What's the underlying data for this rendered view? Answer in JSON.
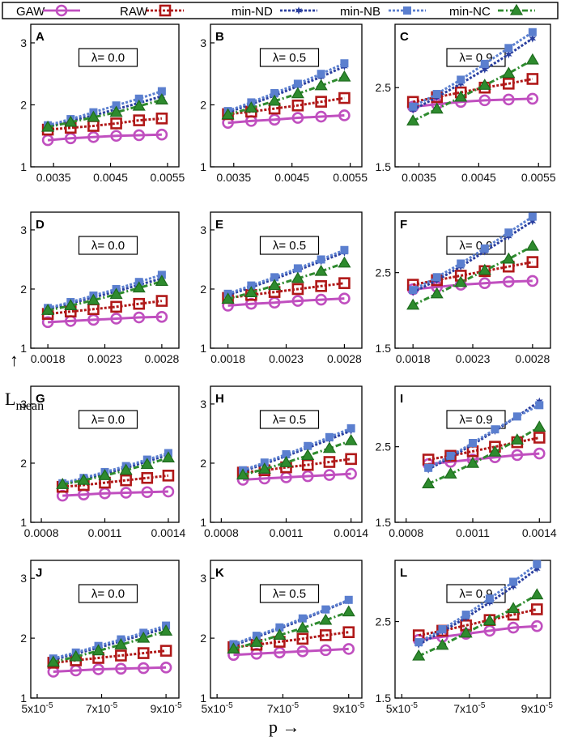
{
  "legend": [
    {
      "label": "GAW",
      "color": "#c04fbf",
      "marker": "circle",
      "dash": "solid"
    },
    {
      "label": "RAW",
      "color": "#b01818",
      "marker": "square",
      "dash": "dotted"
    },
    {
      "label": "min-ND",
      "color": "#2a3f9f",
      "marker": "star",
      "dash": "dotted"
    },
    {
      "label": "min-NB",
      "color": "#5b7fcf",
      "marker": "filled-square",
      "dash": "dotted"
    },
    {
      "label": "min-NC",
      "color": "#2e8b2e",
      "marker": "triangle",
      "dash": "dashdot"
    }
  ],
  "axes_labels": {
    "y": "L",
    "y_sub": "mean",
    "y_arrow": "→",
    "x": "p →"
  },
  "panel_titles": [
    "A",
    "B",
    "C",
    "D",
    "E",
    "F",
    "G",
    "H",
    "I",
    "J",
    "K",
    "L"
  ],
  "chart_data": [
    {
      "type": "line",
      "panel": "A",
      "title": "λ= 0.0",
      "x": [
        0.0034,
        0.0038,
        0.0042,
        0.0046,
        0.005,
        0.0054
      ],
      "xticks": [
        "0.0035",
        "0.0045",
        "0.0055"
      ],
      "xtickvals": [
        0.0035,
        0.0045,
        0.0055
      ],
      "xlim": [
        0.0031,
        0.0057
      ],
      "ylim": [
        1,
        3.3
      ],
      "yticks": [
        1,
        2,
        3
      ],
      "series": [
        {
          "name": "GAW",
          "values": [
            1.43,
            1.46,
            1.48,
            1.5,
            1.51,
            1.52
          ]
        },
        {
          "name": "RAW",
          "values": [
            1.6,
            1.63,
            1.66,
            1.7,
            1.75,
            1.78
          ]
        },
        {
          "name": "min-ND",
          "values": [
            1.65,
            1.74,
            1.83,
            1.93,
            2.03,
            2.14
          ]
        },
        {
          "name": "min-NB",
          "values": [
            1.67,
            1.77,
            1.88,
            1.99,
            2.1,
            2.22
          ]
        },
        {
          "name": "min-NC",
          "values": [
            1.64,
            1.72,
            1.8,
            1.88,
            1.98,
            2.08
          ]
        }
      ]
    },
    {
      "type": "line",
      "panel": "B",
      "title": "λ= 0.5",
      "x": [
        0.0034,
        0.0038,
        0.0042,
        0.0046,
        0.005,
        0.0054
      ],
      "xticks": [
        "0.0035",
        "0.0045",
        "0.0055"
      ],
      "xtickvals": [
        0.0035,
        0.0045,
        0.0055
      ],
      "xlim": [
        0.0031,
        0.0057
      ],
      "ylim": [
        1,
        3.3
      ],
      "yticks": [
        1,
        2,
        3
      ],
      "series": [
        {
          "name": "GAW",
          "values": [
            1.71,
            1.74,
            1.76,
            1.79,
            1.81,
            1.83
          ]
        },
        {
          "name": "RAW",
          "values": [
            1.85,
            1.89,
            1.94,
            1.99,
            2.05,
            2.11
          ]
        },
        {
          "name": "min-ND",
          "values": [
            1.88,
            2.01,
            2.15,
            2.3,
            2.45,
            2.62
          ]
        },
        {
          "name": "min-NB",
          "values": [
            1.9,
            2.04,
            2.19,
            2.34,
            2.5,
            2.67
          ]
        },
        {
          "name": "min-NC",
          "values": [
            1.84,
            1.95,
            2.06,
            2.18,
            2.31,
            2.45
          ]
        }
      ]
    },
    {
      "type": "line",
      "panel": "C",
      "title": "λ= 0.9",
      "x": [
        0.0034,
        0.0038,
        0.0042,
        0.0046,
        0.005,
        0.0054
      ],
      "xticks": [
        "0.0035",
        "0.0045",
        "0.0055"
      ],
      "xtickvals": [
        0.0035,
        0.0045,
        0.0055
      ],
      "xlim": [
        0.0031,
        0.0057
      ],
      "ylim": [
        1.5,
        3.3
      ],
      "yticks": [
        1.5,
        2.5
      ],
      "series": [
        {
          "name": "GAW",
          "values": [
            2.26,
            2.29,
            2.32,
            2.34,
            2.35,
            2.36
          ]
        },
        {
          "name": "RAW",
          "values": [
            2.32,
            2.38,
            2.44,
            2.5,
            2.55,
            2.61
          ]
        },
        {
          "name": "min-ND",
          "values": [
            2.22,
            2.38,
            2.55,
            2.73,
            2.92,
            3.12
          ]
        },
        {
          "name": "min-NB",
          "values": [
            2.26,
            2.42,
            2.6,
            2.8,
            3.0,
            3.2
          ]
        },
        {
          "name": "min-NC",
          "values": [
            2.08,
            2.23,
            2.38,
            2.53,
            2.68,
            2.85
          ]
        }
      ]
    },
    {
      "type": "line",
      "panel": "D",
      "title": "λ= 0.0",
      "x": [
        0.0018,
        0.002,
        0.0022,
        0.0024,
        0.0026,
        0.0028
      ],
      "xticks": [
        "0.0018",
        "0.0023",
        "0.0028"
      ],
      "xtickvals": [
        0.0018,
        0.0023,
        0.0028
      ],
      "xlim": [
        0.00165,
        0.00295
      ],
      "ylim": [
        1,
        3.3
      ],
      "yticks": [
        1,
        2,
        3
      ],
      "series": [
        {
          "name": "GAW",
          "values": [
            1.44,
            1.46,
            1.48,
            1.5,
            1.52,
            1.53
          ]
        },
        {
          "name": "RAW",
          "values": [
            1.58,
            1.62,
            1.66,
            1.7,
            1.75,
            1.8
          ]
        },
        {
          "name": "min-ND",
          "values": [
            1.66,
            1.76,
            1.86,
            1.96,
            2.07,
            2.18
          ]
        },
        {
          "name": "min-NB",
          "values": [
            1.68,
            1.78,
            1.89,
            2.0,
            2.12,
            2.24
          ]
        },
        {
          "name": "min-NC",
          "values": [
            1.64,
            1.72,
            1.81,
            1.91,
            2.02,
            2.13
          ]
        }
      ]
    },
    {
      "type": "line",
      "panel": "E",
      "title": "λ= 0.5",
      "x": [
        0.0018,
        0.002,
        0.0022,
        0.0024,
        0.0026,
        0.0028
      ],
      "xticks": [
        "0.0018",
        "0.0023",
        "0.0028"
      ],
      "xtickvals": [
        0.0018,
        0.0023,
        0.0028
      ],
      "xlim": [
        0.00165,
        0.00295
      ],
      "ylim": [
        1,
        3.3
      ],
      "yticks": [
        1,
        2,
        3
      ],
      "series": [
        {
          "name": "GAW",
          "values": [
            1.72,
            1.75,
            1.77,
            1.8,
            1.82,
            1.84
          ]
        },
        {
          "name": "RAW",
          "values": [
            1.85,
            1.9,
            1.95,
            2.0,
            2.05,
            2.1
          ]
        },
        {
          "name": "min-ND",
          "values": [
            1.9,
            2.03,
            2.17,
            2.32,
            2.47,
            2.62
          ]
        },
        {
          "name": "min-NB",
          "values": [
            1.92,
            2.06,
            2.2,
            2.35,
            2.5,
            2.66
          ]
        },
        {
          "name": "min-NC",
          "values": [
            1.83,
            1.94,
            2.06,
            2.18,
            2.3,
            2.44
          ]
        }
      ]
    },
    {
      "type": "line",
      "panel": "F",
      "title": "λ= 0.9",
      "x": [
        0.0018,
        0.002,
        0.0022,
        0.0024,
        0.0026,
        0.0028
      ],
      "xticks": [
        "0.0018",
        "0.0023",
        "0.0028"
      ],
      "xtickvals": [
        0.0018,
        0.0023,
        0.0028
      ],
      "xlim": [
        0.00165,
        0.00295
      ],
      "ylim": [
        1.5,
        3.3
      ],
      "yticks": [
        1.5,
        2.5
      ],
      "series": [
        {
          "name": "GAW",
          "values": [
            2.28,
            2.31,
            2.34,
            2.36,
            2.38,
            2.39
          ]
        },
        {
          "name": "RAW",
          "values": [
            2.34,
            2.4,
            2.46,
            2.52,
            2.58,
            2.64
          ]
        },
        {
          "name": "min-ND",
          "values": [
            2.24,
            2.4,
            2.58,
            2.78,
            2.98,
            3.18
          ]
        },
        {
          "name": "min-NB",
          "values": [
            2.27,
            2.44,
            2.62,
            2.82,
            3.03,
            3.24
          ]
        },
        {
          "name": "min-NC",
          "values": [
            2.07,
            2.22,
            2.37,
            2.53,
            2.68,
            2.85
          ]
        }
      ]
    },
    {
      "type": "line",
      "panel": "G",
      "title": "λ= 0.0",
      "x": [
        0.0009,
        0.001,
        0.0011,
        0.0012,
        0.0013,
        0.0014
      ],
      "xticks": [
        "0.0008",
        "0.0011",
        "0.0014"
      ],
      "xtickvals": [
        0.0008,
        0.0011,
        0.0014
      ],
      "xlim": [
        0.00075,
        0.00145
      ],
      "ylim": [
        1,
        3.3
      ],
      "yticks": [
        1,
        2,
        3
      ],
      "series": [
        {
          "name": "GAW",
          "values": [
            1.45,
            1.47,
            1.49,
            1.5,
            1.51,
            1.52
          ]
        },
        {
          "name": "RAW",
          "values": [
            1.6,
            1.63,
            1.67,
            1.71,
            1.75,
            1.79
          ]
        },
        {
          "name": "min-ND",
          "values": [
            1.64,
            1.73,
            1.82,
            1.92,
            2.03,
            2.14
          ]
        },
        {
          "name": "min-NB",
          "values": [
            1.66,
            1.75,
            1.85,
            1.95,
            2.06,
            2.17
          ]
        },
        {
          "name": "min-NC",
          "values": [
            1.64,
            1.71,
            1.79,
            1.88,
            1.98,
            2.09
          ]
        }
      ]
    },
    {
      "type": "line",
      "panel": "H",
      "title": "λ= 0.5",
      "x": [
        0.0009,
        0.001,
        0.0011,
        0.0012,
        0.0013,
        0.0014
      ],
      "xticks": [
        "0.0008",
        "0.0011",
        "0.0014"
      ],
      "xtickvals": [
        0.0008,
        0.0011,
        0.0014
      ],
      "xlim": [
        0.00075,
        0.00145
      ],
      "ylim": [
        1,
        3.3
      ],
      "yticks": [
        1,
        2,
        3
      ],
      "series": [
        {
          "name": "GAW",
          "values": [
            1.72,
            1.74,
            1.76,
            1.78,
            1.8,
            1.82
          ]
        },
        {
          "name": "RAW",
          "values": [
            1.84,
            1.88,
            1.93,
            1.97,
            2.02,
            2.07
          ]
        },
        {
          "name": "min-ND",
          "values": [
            1.86,
            1.99,
            2.12,
            2.26,
            2.4,
            2.55
          ]
        },
        {
          "name": "min-NB",
          "values": [
            1.88,
            2.01,
            2.15,
            2.29,
            2.44,
            2.59
          ]
        },
        {
          "name": "min-NC",
          "values": [
            1.8,
            1.9,
            2.01,
            2.13,
            2.25,
            2.38
          ]
        }
      ]
    },
    {
      "type": "line",
      "panel": "I",
      "title": "λ= 0.9",
      "x": [
        0.0009,
        0.001,
        0.0011,
        0.0012,
        0.0013,
        0.0014
      ],
      "xticks": [
        "0.0008",
        "0.0011",
        "0.0014"
      ],
      "xtickvals": [
        0.0008,
        0.0011,
        0.0014
      ],
      "xlim": [
        0.00075,
        0.00145
      ],
      "ylim": [
        1.5,
        3.3
      ],
      "yticks": [
        1.5,
        2.5
      ],
      "series": [
        {
          "name": "GAW",
          "values": [
            2.27,
            2.3,
            2.33,
            2.36,
            2.39,
            2.41
          ]
        },
        {
          "name": "RAW",
          "values": [
            2.33,
            2.38,
            2.44,
            2.5,
            2.56,
            2.62
          ]
        },
        {
          "name": "min-ND",
          "values": [
            2.2,
            2.36,
            2.53,
            2.71,
            2.9,
            3.1
          ]
        },
        {
          "name": "min-NB",
          "values": [
            2.22,
            2.38,
            2.55,
            2.73,
            2.9,
            3.05
          ]
        },
        {
          "name": "min-NC",
          "values": [
            2.01,
            2.14,
            2.28,
            2.43,
            2.59,
            2.76
          ]
        }
      ]
    },
    {
      "type": "line",
      "panel": "J",
      "title": "λ= 0.0",
      "x": [
        5.5e-05,
        6.2e-05,
        6.9e-05,
        7.6e-05,
        8.3e-05,
        9e-05
      ],
      "xticks": [
        "5x10-5",
        "7x10-5",
        "9x10-5"
      ],
      "xtickvals": [
        5e-05,
        7e-05,
        9e-05
      ],
      "xlim": [
        4.8e-05,
        9.4e-05
      ],
      "ylim": [
        1,
        3.3
      ],
      "yticks": [
        1,
        2,
        3
      ],
      "series": [
        {
          "name": "GAW",
          "values": [
            1.44,
            1.46,
            1.48,
            1.49,
            1.5,
            1.51
          ]
        },
        {
          "name": "RAW",
          "values": [
            1.59,
            1.63,
            1.67,
            1.71,
            1.75,
            1.79
          ]
        },
        {
          "name": "min-ND",
          "values": [
            1.64,
            1.74,
            1.84,
            1.95,
            2.06,
            2.17
          ]
        },
        {
          "name": "min-NB",
          "values": [
            1.66,
            1.76,
            1.87,
            1.98,
            2.09,
            2.21
          ]
        },
        {
          "name": "min-NC",
          "values": [
            1.6,
            1.69,
            1.79,
            1.89,
            2.0,
            2.12
          ]
        }
      ]
    },
    {
      "type": "line",
      "panel": "K",
      "title": "λ= 0.5",
      "x": [
        5.5e-05,
        6.2e-05,
        6.9e-05,
        7.6e-05,
        8.3e-05,
        9e-05
      ],
      "xticks": [
        "5x10-5",
        "7x10-5",
        "9x10-5"
      ],
      "xtickvals": [
        5e-05,
        7e-05,
        9e-05
      ],
      "xlim": [
        4.8e-05,
        9.4e-05
      ],
      "ylim": [
        1,
        3.3
      ],
      "yticks": [
        1,
        2,
        3
      ],
      "series": [
        {
          "name": "GAW",
          "values": [
            1.72,
            1.74,
            1.76,
            1.78,
            1.8,
            1.82
          ]
        },
        {
          "name": "RAW",
          "values": [
            1.85,
            1.89,
            1.94,
            1.99,
            2.05,
            2.1
          ]
        },
        {
          "name": "min-ND",
          "values": [
            1.88,
            2.02,
            2.16,
            2.31,
            2.47,
            2.63
          ]
        },
        {
          "name": "min-NB",
          "values": [
            1.9,
            2.04,
            2.18,
            2.33,
            2.48,
            2.64
          ]
        },
        {
          "name": "min-NC",
          "values": [
            1.82,
            1.93,
            2.05,
            2.17,
            2.3,
            2.44
          ]
        }
      ]
    },
    {
      "type": "line",
      "panel": "L",
      "title": "λ= 0.9",
      "x": [
        5.5e-05,
        6.2e-05,
        6.9e-05,
        7.6e-05,
        8.3e-05,
        9e-05
      ],
      "xticks": [
        "5x10-5",
        "7x10-5",
        "9x10-5"
      ],
      "xtickvals": [
        5e-05,
        7e-05,
        9e-05
      ],
      "xlim": [
        4.8e-05,
        9.4e-05
      ],
      "ylim": [
        1.5,
        3.3
      ],
      "yticks": [
        1.5,
        2.5
      ],
      "series": [
        {
          "name": "GAW",
          "values": [
            2.26,
            2.3,
            2.34,
            2.38,
            2.42,
            2.44
          ]
        },
        {
          "name": "RAW",
          "values": [
            2.32,
            2.38,
            2.45,
            2.52,
            2.59,
            2.66
          ]
        },
        {
          "name": "min-ND",
          "values": [
            2.2,
            2.37,
            2.55,
            2.75,
            2.96,
            3.19
          ]
        },
        {
          "name": "min-NB",
          "values": [
            2.23,
            2.4,
            2.59,
            2.8,
            3.02,
            3.25
          ]
        },
        {
          "name": "min-NC",
          "values": [
            2.05,
            2.19,
            2.35,
            2.51,
            2.67,
            2.85
          ]
        }
      ]
    }
  ]
}
